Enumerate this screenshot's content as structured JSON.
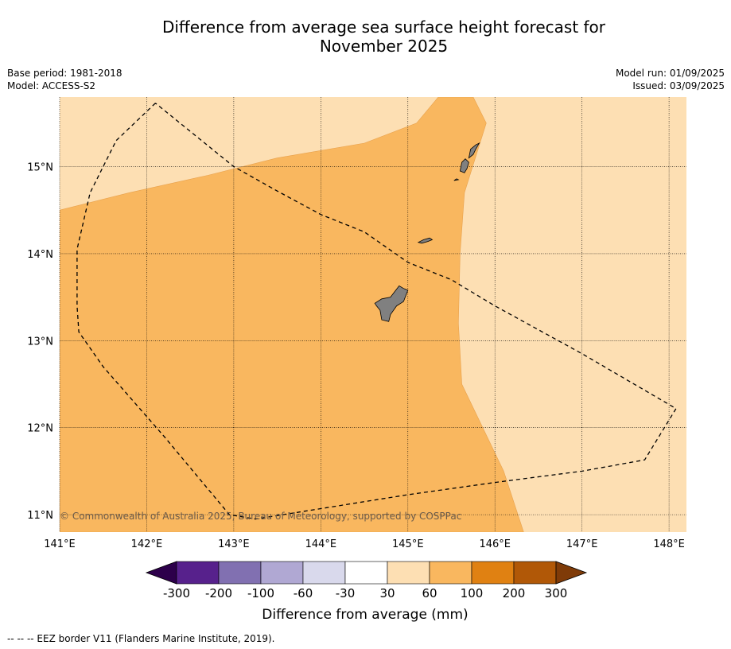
{
  "title_line1": "Difference from average sea surface height forecast for",
  "title_line2": "November 2025",
  "meta_left": [
    "Base period: 1981-2018",
    "Model: ACCESS-S2"
  ],
  "meta_right": [
    "Model run: 01/09/2025",
    "Issued: 03/09/2025"
  ],
  "copyright": "© Commonwealth of Australia 2025, Bureau of Meteorology, supported by COSPPac",
  "footnote": "--  --  -- EEZ border V11 (Flanders Marine Institute, 2019).",
  "colors": {
    "band_30_60": "#fddfb3",
    "band_60_100": "#f9b75f",
    "land": "#808080",
    "eez": "#000000"
  },
  "chart_data": {
    "type": "heatmap",
    "map_extent": {
      "lon": [
        141.0,
        148.2
      ],
      "lat": [
        10.8,
        15.8
      ]
    },
    "x_ticks": [
      {
        "value": 141,
        "label": "141°E"
      },
      {
        "value": 142,
        "label": "142°E"
      },
      {
        "value": 143,
        "label": "143°E"
      },
      {
        "value": 144,
        "label": "144°E"
      },
      {
        "value": 145,
        "label": "145°E"
      },
      {
        "value": 146,
        "label": "146°E"
      },
      {
        "value": 147,
        "label": "147°E"
      },
      {
        "value": 148,
        "label": "148°E"
      }
    ],
    "y_ticks": [
      {
        "value": 15,
        "label": "15°N"
      },
      {
        "value": 14,
        "label": "14°N"
      },
      {
        "value": 13,
        "label": "13°N"
      },
      {
        "value": 12,
        "label": "12°N"
      },
      {
        "value": 11,
        "label": "11°N"
      }
    ],
    "grid": true,
    "colorbar": {
      "label": "Difference from average (mm)",
      "ticks": [
        "-300",
        "-200",
        "-100",
        "-60",
        "-30",
        "30",
        "60",
        "100",
        "200",
        "300"
      ],
      "bins": [
        {
          "from": -300,
          "to": -200,
          "color": "#57218c"
        },
        {
          "from": -200,
          "to": -100,
          "color": "#8170b1"
        },
        {
          "from": -100,
          "to": -60,
          "color": "#b0a8d3"
        },
        {
          "from": -60,
          "to": -30,
          "color": "#d9d9ec"
        },
        {
          "from": -30,
          "to": 30,
          "color": "#ffffff"
        },
        {
          "from": 30,
          "to": 60,
          "color": "#fddfb3"
        },
        {
          "from": 60,
          "to": 100,
          "color": "#f9b75f"
        },
        {
          "from": 100,
          "to": 200,
          "color": "#e08112"
        },
        {
          "from": 200,
          "to": 300,
          "color": "#b15807"
        }
      ],
      "under_color": "#2d004b",
      "over_color": "#7f3b08"
    },
    "regions": [
      {
        "band": "60-100",
        "polygon": [
          [
            141.0,
            14.5
          ],
          [
            141.8,
            14.7
          ],
          [
            142.7,
            14.9
          ],
          [
            143.5,
            15.1
          ],
          [
            144.5,
            15.27
          ],
          [
            145.1,
            15.5
          ],
          [
            145.35,
            15.8
          ],
          [
            145.75,
            15.8
          ],
          [
            145.9,
            15.5
          ],
          [
            145.65,
            14.7
          ],
          [
            145.6,
            14.0
          ],
          [
            145.58,
            13.2
          ],
          [
            145.62,
            12.5
          ],
          [
            146.1,
            11.5
          ],
          [
            146.33,
            10.8
          ],
          [
            141.0,
            10.8
          ]
        ]
      }
    ],
    "islands": [
      {
        "name": "Guam",
        "polygon": [
          [
            144.62,
            13.43
          ],
          [
            144.7,
            13.48
          ],
          [
            144.8,
            13.5
          ],
          [
            144.9,
            13.63
          ],
          [
            144.95,
            13.6
          ],
          [
            145.0,
            13.58
          ],
          [
            144.95,
            13.45
          ],
          [
            144.87,
            13.4
          ],
          [
            144.8,
            13.3
          ],
          [
            144.78,
            13.22
          ],
          [
            144.7,
            13.24
          ],
          [
            144.68,
            13.35
          ],
          [
            144.64,
            13.4
          ]
        ]
      },
      {
        "name": "Rota",
        "polygon": [
          [
            145.12,
            14.13
          ],
          [
            145.18,
            14.16
          ],
          [
            145.25,
            14.18
          ],
          [
            145.28,
            14.16
          ],
          [
            145.23,
            14.14
          ],
          [
            145.16,
            14.12
          ]
        ]
      },
      {
        "name": "Tinian",
        "polygon": [
          [
            145.6,
            14.95
          ],
          [
            145.62,
            15.05
          ],
          [
            145.66,
            15.09
          ],
          [
            145.7,
            15.05
          ],
          [
            145.68,
            14.98
          ],
          [
            145.65,
            14.93
          ]
        ]
      },
      {
        "name": "Saipan",
        "polygon": [
          [
            145.7,
            15.1
          ],
          [
            145.72,
            15.2
          ],
          [
            145.78,
            15.25
          ],
          [
            145.82,
            15.27
          ],
          [
            145.78,
            15.2
          ],
          [
            145.75,
            15.14
          ]
        ]
      },
      {
        "name": "Aguijan",
        "polygon": [
          [
            145.53,
            14.84
          ],
          [
            145.56,
            14.86
          ],
          [
            145.58,
            14.85
          ]
        ]
      }
    ],
    "eez_border": [
      [
        142.1,
        15.73
      ],
      [
        141.65,
        15.3
      ],
      [
        141.35,
        14.7
      ],
      [
        141.2,
        14.05
      ],
      [
        141.2,
        13.4
      ],
      [
        141.22,
        13.1
      ],
      [
        141.5,
        12.7
      ],
      [
        142.2,
        11.9
      ],
      [
        142.95,
        11.0
      ],
      [
        143.25,
        10.95
      ],
      [
        144.0,
        11.07
      ],
      [
        145.0,
        11.23
      ],
      [
        146.0,
        11.37
      ],
      [
        147.0,
        11.5
      ],
      [
        147.72,
        11.63
      ],
      [
        148.08,
        12.22
      ],
      [
        147.0,
        12.85
      ],
      [
        146.0,
        13.4
      ],
      [
        145.5,
        13.7
      ],
      [
        145.0,
        13.9
      ],
      [
        144.5,
        14.25
      ],
      [
        144.0,
        14.45
      ],
      [
        143.5,
        14.72
      ],
      [
        143.0,
        15.0
      ],
      [
        142.1,
        15.73
      ]
    ]
  }
}
